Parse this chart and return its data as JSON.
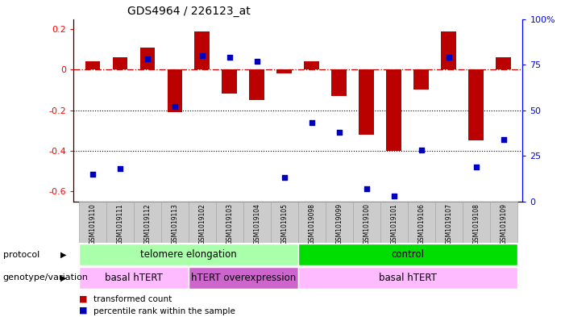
{
  "title": "GDS4964 / 226123_at",
  "samples": [
    "GSM1019110",
    "GSM1019111",
    "GSM1019112",
    "GSM1019113",
    "GSM1019102",
    "GSM1019103",
    "GSM1019104",
    "GSM1019105",
    "GSM1019098",
    "GSM1019099",
    "GSM1019100",
    "GSM1019101",
    "GSM1019106",
    "GSM1019107",
    "GSM1019108",
    "GSM1019109"
  ],
  "bar_values": [
    0.04,
    0.06,
    0.11,
    -0.21,
    0.19,
    -0.12,
    -0.15,
    -0.02,
    0.04,
    -0.13,
    -0.32,
    -0.4,
    -0.1,
    0.19,
    -0.35,
    0.06
  ],
  "dot_values_pct": [
    15,
    18,
    78,
    52,
    80,
    79,
    77,
    13,
    43,
    38,
    7,
    3,
    28,
    79,
    19,
    34
  ],
  "ylim_left": [
    -0.65,
    0.25
  ],
  "ylim_right": [
    0,
    100
  ],
  "bar_color": "#BB0000",
  "dot_color": "#0000BB",
  "hline_color": "#CC0000",
  "protocol_groups": [
    {
      "label": "telomere elongation",
      "start": 0,
      "end": 8,
      "color": "#AAFFAA"
    },
    {
      "label": "control",
      "start": 8,
      "end": 16,
      "color": "#00DD00"
    }
  ],
  "genotype_groups": [
    {
      "label": "basal hTERT",
      "start": 0,
      "end": 4,
      "color": "#FFBBFF"
    },
    {
      "label": "hTERT overexpression",
      "start": 4,
      "end": 8,
      "color": "#CC66CC"
    },
    {
      "label": "basal hTERT",
      "start": 8,
      "end": 16,
      "color": "#FFBBFF"
    }
  ],
  "protocol_label": "protocol",
  "genotype_label": "genotype/variation",
  "legend_bar": "transformed count",
  "legend_dot": "percentile rank within the sample",
  "left_yticks": [
    0.2,
    0.0,
    -0.2,
    -0.4,
    -0.6
  ],
  "right_yticks": [
    0,
    25,
    50,
    75,
    100
  ],
  "right_yticklabels": [
    "0",
    "25",
    "50",
    "75",
    "100%"
  ]
}
